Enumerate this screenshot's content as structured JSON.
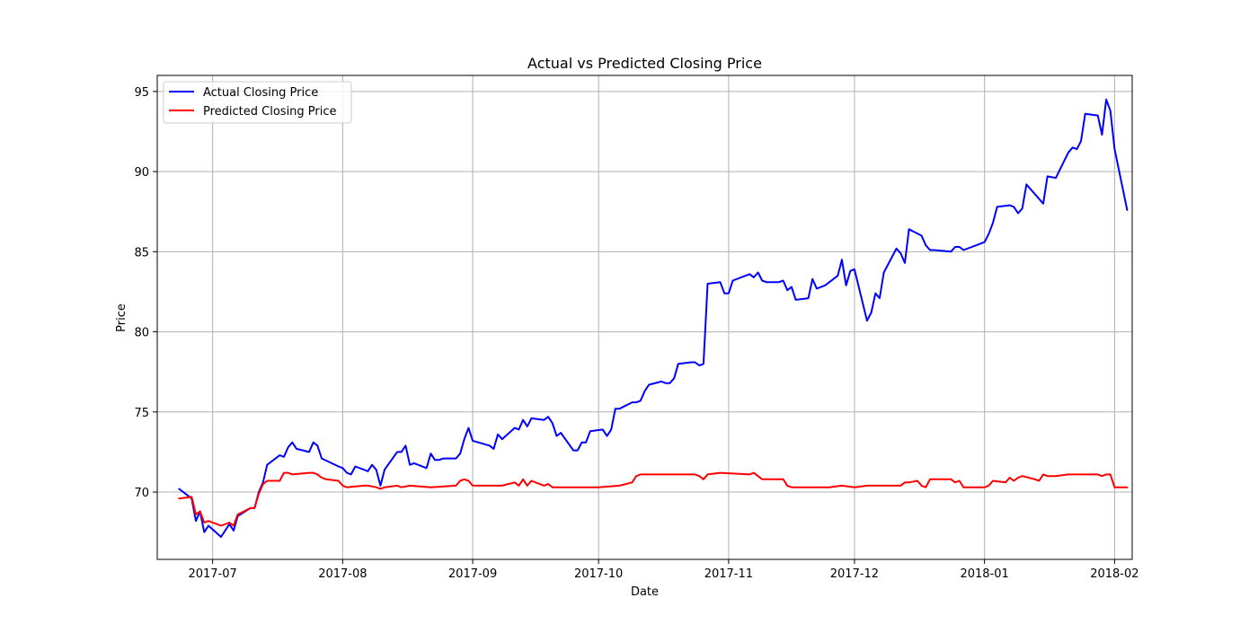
{
  "chart_data": {
    "type": "line",
    "title": "Actual vs Predicted Closing Price",
    "xlabel": "Date",
    "ylabel": "Price",
    "xlim": [
      -5.2,
      227.2
    ],
    "ylim": [
      65.8,
      96.0
    ],
    "grid": true,
    "legend_position": "top-left",
    "x_ticks": [
      {
        "value": 8,
        "label": "2017-07"
      },
      {
        "value": 39,
        "label": "2017-08"
      },
      {
        "value": 70,
        "label": "2017-09"
      },
      {
        "value": 100,
        "label": "2017-10"
      },
      {
        "value": 131,
        "label": "2017-11"
      },
      {
        "value": 161,
        "label": "2017-12"
      },
      {
        "value": 192,
        "label": "2018-01"
      },
      {
        "value": 223,
        "label": "2018-02"
      }
    ],
    "y_ticks": [
      {
        "value": 70,
        "label": "70"
      },
      {
        "value": 75,
        "label": "75"
      },
      {
        "value": 80,
        "label": "80"
      },
      {
        "value": 85,
        "label": "85"
      },
      {
        "value": 90,
        "label": "90"
      },
      {
        "value": 95,
        "label": "95"
      }
    ],
    "series": [
      {
        "name": "Actual Closing Price",
        "color": "#0000ff",
        "points": [
          [
            0,
            70.2
          ],
          [
            3,
            69.6
          ],
          [
            4,
            68.2
          ],
          [
            5,
            68.8
          ],
          [
            6,
            67.5
          ],
          [
            7,
            67.9
          ],
          [
            10,
            67.2
          ],
          [
            12,
            68.0
          ],
          [
            13,
            67.6
          ],
          [
            14,
            68.5
          ],
          [
            17,
            69.0
          ],
          [
            18,
            69.0
          ],
          [
            19,
            70.0
          ],
          [
            20,
            70.6
          ],
          [
            21,
            71.7
          ],
          [
            24,
            72.3
          ],
          [
            25,
            72.2
          ],
          [
            26,
            72.8
          ],
          [
            27,
            73.1
          ],
          [
            28,
            72.7
          ],
          [
            31,
            72.5
          ],
          [
            32,
            73.1
          ],
          [
            33,
            72.9
          ],
          [
            34,
            72.1
          ],
          [
            38,
            71.6
          ],
          [
            39,
            71.5
          ],
          [
            40,
            71.2
          ],
          [
            41,
            71.1
          ],
          [
            42,
            71.6
          ],
          [
            45,
            71.3
          ],
          [
            46,
            71.7
          ],
          [
            47,
            71.4
          ],
          [
            48,
            70.4
          ],
          [
            49,
            71.4
          ],
          [
            52,
            72.5
          ],
          [
            53,
            72.5
          ],
          [
            54,
            72.9
          ],
          [
            55,
            71.7
          ],
          [
            56,
            71.8
          ],
          [
            59,
            71.5
          ],
          [
            60,
            72.4
          ],
          [
            61,
            72.0
          ],
          [
            62,
            72.0
          ],
          [
            63,
            72.1
          ],
          [
            66,
            72.1
          ],
          [
            67,
            72.4
          ],
          [
            68,
            73.3
          ],
          [
            69,
            74.0
          ],
          [
            70,
            73.2
          ],
          [
            74,
            72.9
          ],
          [
            75,
            72.7
          ],
          [
            76,
            73.6
          ],
          [
            77,
            73.3
          ],
          [
            80,
            74.0
          ],
          [
            81,
            73.9
          ],
          [
            82,
            74.5
          ],
          [
            83,
            74.1
          ],
          [
            84,
            74.6
          ],
          [
            87,
            74.5
          ],
          [
            88,
            74.7
          ],
          [
            89,
            74.3
          ],
          [
            90,
            73.5
          ],
          [
            91,
            73.7
          ],
          [
            94,
            72.6
          ],
          [
            95,
            72.6
          ],
          [
            96,
            73.1
          ],
          [
            97,
            73.1
          ],
          [
            98,
            73.8
          ],
          [
            101,
            73.9
          ],
          [
            102,
            73.5
          ],
          [
            103,
            73.9
          ],
          [
            104,
            75.2
          ],
          [
            105,
            75.2
          ],
          [
            108,
            75.6
          ],
          [
            109,
            75.6
          ],
          [
            110,
            75.7
          ],
          [
            111,
            76.3
          ],
          [
            112,
            76.7
          ],
          [
            115,
            76.9
          ],
          [
            116,
            76.8
          ],
          [
            117,
            76.8
          ],
          [
            118,
            77.1
          ],
          [
            119,
            78.0
          ],
          [
            122,
            78.1
          ],
          [
            123,
            78.1
          ],
          [
            124,
            77.9
          ],
          [
            125,
            78.0
          ],
          [
            126,
            83.0
          ],
          [
            129,
            83.1
          ],
          [
            130,
            82.4
          ],
          [
            131,
            82.4
          ],
          [
            132,
            83.2
          ],
          [
            136,
            83.6
          ],
          [
            137,
            83.4
          ],
          [
            138,
            83.7
          ],
          [
            139,
            83.2
          ],
          [
            140,
            83.1
          ],
          [
            143,
            83.1
          ],
          [
            144,
            83.2
          ],
          [
            145,
            82.6
          ],
          [
            146,
            82.8
          ],
          [
            147,
            82.0
          ],
          [
            150,
            82.1
          ],
          [
            151,
            83.3
          ],
          [
            152,
            82.7
          ],
          [
            154,
            82.9
          ],
          [
            157,
            83.5
          ],
          [
            158,
            84.5
          ],
          [
            159,
            82.9
          ],
          [
            160,
            83.8
          ],
          [
            161,
            83.9
          ],
          [
            164,
            80.7
          ],
          [
            165,
            81.2
          ],
          [
            166,
            82.4
          ],
          [
            167,
            82.1
          ],
          [
            168,
            83.7
          ],
          [
            171,
            85.2
          ],
          [
            172,
            84.9
          ],
          [
            173,
            84.3
          ],
          [
            174,
            86.4
          ],
          [
            177,
            86.0
          ],
          [
            178,
            85.4
          ],
          [
            179,
            85.1
          ],
          [
            180,
            85.1
          ],
          [
            184,
            85.0
          ],
          [
            185,
            85.3
          ],
          [
            186,
            85.3
          ],
          [
            187,
            85.1
          ],
          [
            191,
            85.5
          ],
          [
            192,
            85.6
          ],
          [
            193,
            86.1
          ],
          [
            194,
            86.8
          ],
          [
            195,
            87.8
          ],
          [
            198,
            87.9
          ],
          [
            199,
            87.8
          ],
          [
            200,
            87.4
          ],
          [
            201,
            87.7
          ],
          [
            202,
            89.2
          ],
          [
            206,
            88.0
          ],
          [
            207,
            89.7
          ],
          [
            209,
            89.6
          ],
          [
            212,
            91.2
          ],
          [
            213,
            91.5
          ],
          [
            214,
            91.4
          ],
          [
            215,
            91.9
          ],
          [
            216,
            93.6
          ],
          [
            219,
            93.5
          ],
          [
            220,
            92.3
          ],
          [
            221,
            94.5
          ],
          [
            222,
            93.8
          ],
          [
            223,
            91.4
          ],
          [
            226,
            87.6
          ]
        ]
      },
      {
        "name": "Predicted Closing Price",
        "color": "#ff0000",
        "points": [
          [
            0,
            69.6
          ],
          [
            3,
            69.7
          ],
          [
            4,
            68.6
          ],
          [
            5,
            68.8
          ],
          [
            6,
            68.1
          ],
          [
            7,
            68.2
          ],
          [
            10,
            67.9
          ],
          [
            12,
            68.1
          ],
          [
            13,
            67.9
          ],
          [
            14,
            68.6
          ],
          [
            17,
            69.0
          ],
          [
            18,
            69.0
          ],
          [
            19,
            69.9
          ],
          [
            20,
            70.5
          ],
          [
            21,
            70.7
          ],
          [
            24,
            70.7
          ],
          [
            25,
            71.2
          ],
          [
            26,
            71.2
          ],
          [
            27,
            71.1
          ],
          [
            31,
            71.2
          ],
          [
            32,
            71.2
          ],
          [
            33,
            71.1
          ],
          [
            34,
            70.9
          ],
          [
            35,
            70.8
          ],
          [
            38,
            70.7
          ],
          [
            39,
            70.4
          ],
          [
            40,
            70.3
          ],
          [
            44,
            70.4
          ],
          [
            45,
            70.4
          ],
          [
            47,
            70.3
          ],
          [
            48,
            70.2
          ],
          [
            49,
            70.3
          ],
          [
            52,
            70.4
          ],
          [
            53,
            70.3
          ],
          [
            55,
            70.4
          ],
          [
            60,
            70.3
          ],
          [
            66,
            70.4
          ],
          [
            67,
            70.7
          ],
          [
            68,
            70.8
          ],
          [
            69,
            70.7
          ],
          [
            70,
            70.4
          ],
          [
            75,
            70.4
          ],
          [
            76,
            70.4
          ],
          [
            77,
            70.4
          ],
          [
            80,
            70.6
          ],
          [
            81,
            70.4
          ],
          [
            82,
            70.8
          ],
          [
            83,
            70.4
          ],
          [
            84,
            70.7
          ],
          [
            87,
            70.4
          ],
          [
            88,
            70.5
          ],
          [
            89,
            70.3
          ],
          [
            100,
            70.3
          ],
          [
            105,
            70.4
          ],
          [
            108,
            70.6
          ],
          [
            109,
            71.0
          ],
          [
            110,
            71.1
          ],
          [
            115,
            71.1
          ],
          [
            116,
            71.1
          ],
          [
            118,
            71.1
          ],
          [
            123,
            71.1
          ],
          [
            124,
            71.0
          ],
          [
            125,
            70.8
          ],
          [
            126,
            71.1
          ],
          [
            129,
            71.2
          ],
          [
            136,
            71.1
          ],
          [
            137,
            71.2
          ],
          [
            139,
            70.8
          ],
          [
            144,
            70.8
          ],
          [
            145,
            70.4
          ],
          [
            146,
            70.3
          ],
          [
            155,
            70.3
          ],
          [
            158,
            70.4
          ],
          [
            161,
            70.3
          ],
          [
            164,
            70.4
          ],
          [
            170,
            70.4
          ],
          [
            171,
            70.4
          ],
          [
            172,
            70.4
          ],
          [
            173,
            70.6
          ],
          [
            174,
            70.6
          ],
          [
            176,
            70.7
          ],
          [
            177,
            70.4
          ],
          [
            178,
            70.3
          ],
          [
            179,
            70.8
          ],
          [
            183,
            70.8
          ],
          [
            184,
            70.8
          ],
          [
            185,
            70.6
          ],
          [
            186,
            70.7
          ],
          [
            187,
            70.3
          ],
          [
            190,
            70.3
          ],
          [
            192,
            70.3
          ],
          [
            193,
            70.4
          ],
          [
            194,
            70.7
          ],
          [
            197,
            70.6
          ],
          [
            198,
            70.9
          ],
          [
            199,
            70.7
          ],
          [
            200,
            70.9
          ],
          [
            201,
            71.0
          ],
          [
            204,
            70.8
          ],
          [
            205,
            70.7
          ],
          [
            206,
            71.1
          ],
          [
            207,
            71.0
          ],
          [
            209,
            71.0
          ],
          [
            212,
            71.1
          ],
          [
            215,
            71.1
          ],
          [
            216,
            71.1
          ],
          [
            219,
            71.1
          ],
          [
            220,
            71.0
          ],
          [
            221,
            71.1
          ],
          [
            222,
            71.1
          ],
          [
            223,
            70.3
          ],
          [
            226,
            70.3
          ]
        ]
      }
    ]
  }
}
